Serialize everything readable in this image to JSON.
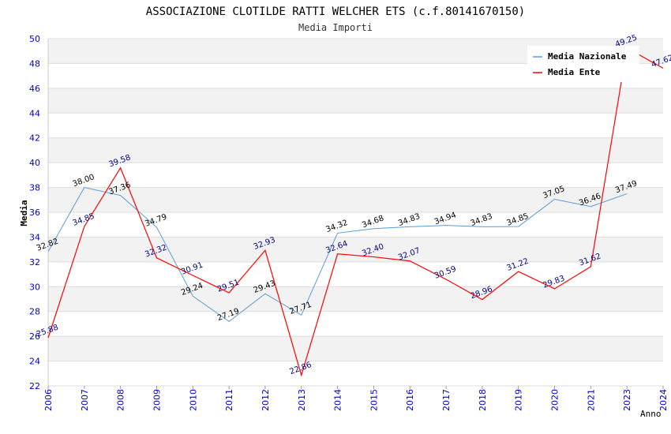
{
  "header": {
    "title": "ASSOCIAZIONE CLOTILDE RATTI WELCHER ETS (c.f.80141670150)",
    "subtitle": "Media Importi"
  },
  "chart_data": {
    "type": "line",
    "ylabel": "Media",
    "xlabel": "Anno",
    "ylim": [
      22,
      50
    ],
    "yticks": [
      22,
      24,
      26,
      28,
      30,
      32,
      34,
      36,
      38,
      40,
      42,
      44,
      46,
      48,
      50
    ],
    "x": [
      "2006",
      "2007",
      "2008",
      "2009",
      "2010",
      "2011",
      "2012",
      "2013",
      "2014",
      "2015",
      "2016",
      "2017",
      "2018",
      "2019",
      "2020",
      "2021",
      "2023",
      "2024"
    ],
    "grid": "horizontal bands",
    "legend_position": "top-right",
    "series": [
      {
        "name": "Media Nazionale",
        "color": "#5b9bd5",
        "values": [
          32.82,
          38.0,
          37.36,
          34.79,
          29.24,
          27.19,
          29.43,
          27.71,
          34.32,
          34.68,
          34.83,
          34.94,
          34.83,
          34.85,
          37.05,
          36.46,
          37.49,
          null
        ]
      },
      {
        "name": "Media Ente",
        "color": "#ff0000",
        "values": [
          25.88,
          34.85,
          39.58,
          32.32,
          30.91,
          29.51,
          32.93,
          22.86,
          32.64,
          32.4,
          32.07,
          30.59,
          28.96,
          31.22,
          29.83,
          31.62,
          49.25,
          47.62
        ]
      }
    ],
    "labels_naz": [
      "32.82",
      "38.00",
      "37.36",
      "34.79",
      "29.24",
      "27.19",
      "29.43",
      "27.71",
      "34.32",
      "34.68",
      "34.83",
      "34.94",
      "34.83",
      "34.85",
      "37.05",
      "36.46",
      "37.49",
      ""
    ],
    "labels_ente": [
      "25.88",
      "34.85",
      "39.58",
      "32.32",
      "30.91",
      "29.51",
      "32.93",
      "22.86",
      "32.64",
      "32.40",
      "32.07",
      "30.59",
      "28.96",
      "31.22",
      "29.83",
      "31.62",
      "49.25",
      "47.62"
    ]
  }
}
